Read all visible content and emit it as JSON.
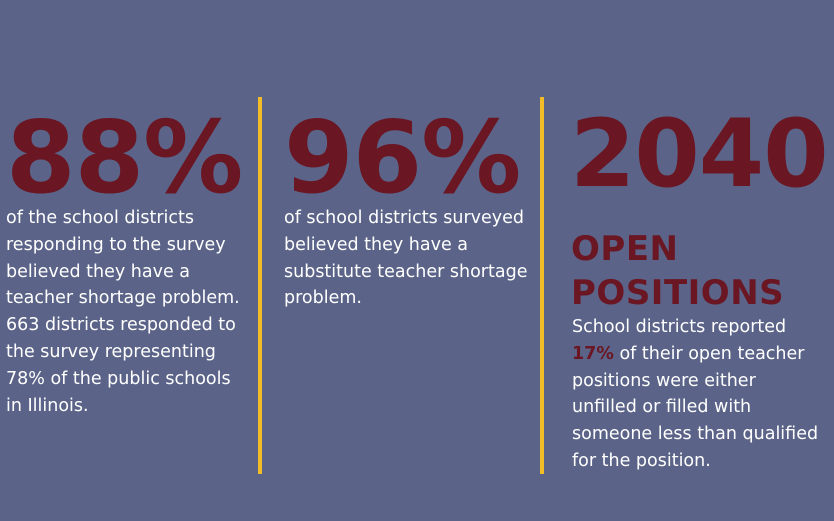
{
  "colors": {
    "background": "#5b6488",
    "stat_color": "#6a1623",
    "divider_color": "#f2bd26",
    "text_color": "#ffffff"
  },
  "col1": {
    "stat": "88%",
    "description": "of the school districts responding to the survey believed they have a teacher shortage problem. 663 districts responded to the survey representing 78% of the public schools in Illinois."
  },
  "col2": {
    "stat": "96%",
    "description": "of school districts surveyed believed they have a substitute teacher shortage problem."
  },
  "col3": {
    "stat": "2040",
    "heading_line1": "OPEN",
    "heading_line2": "POSITIONS",
    "description_before": "School districts reported ",
    "description_highlight": "17%",
    "description_after": " of their open teacher positions were either unfilled or filled with someone less than qualified for the position."
  }
}
